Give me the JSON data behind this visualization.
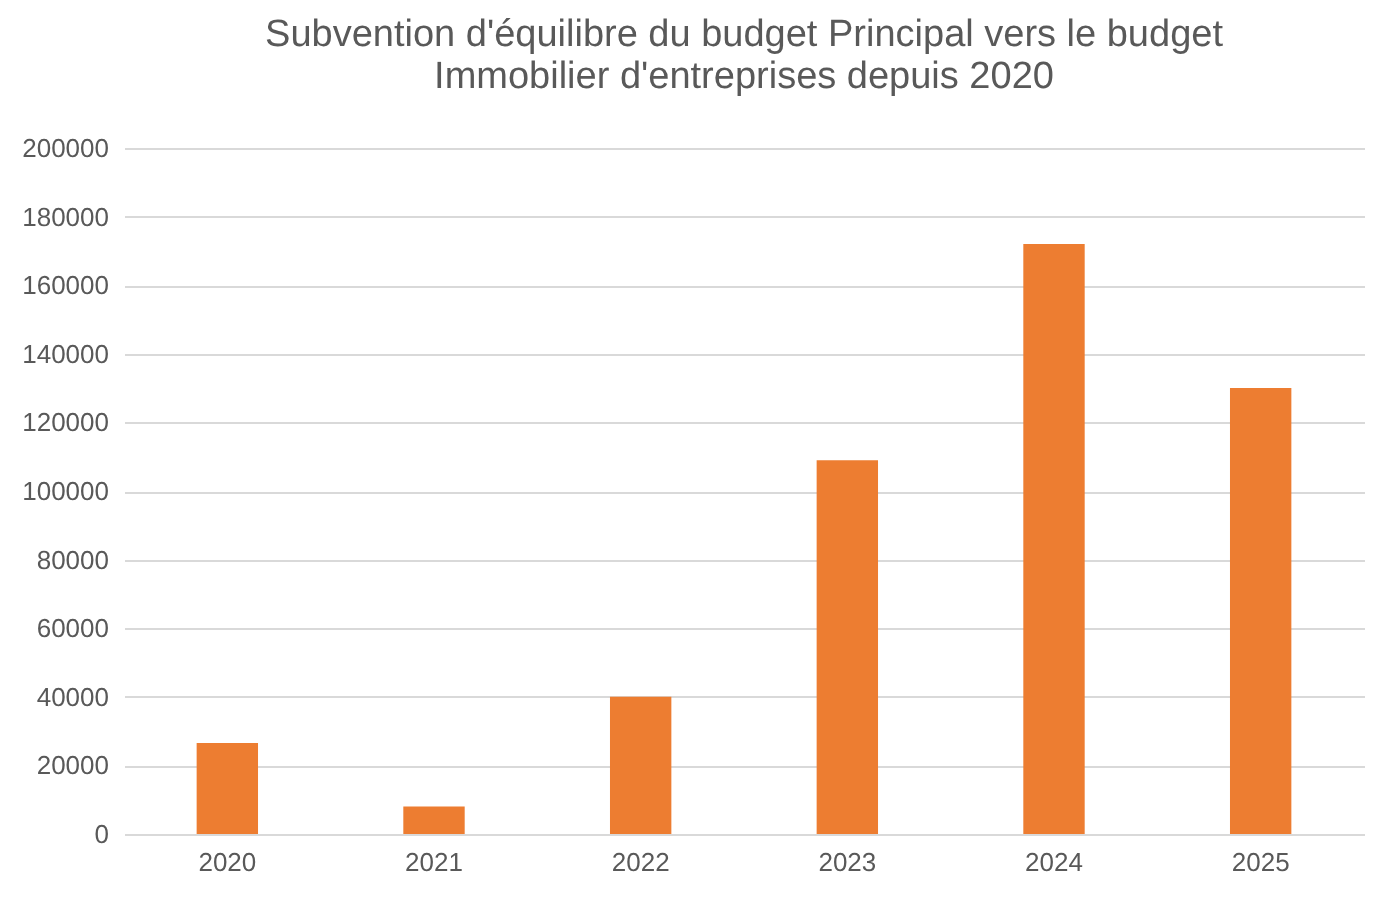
{
  "chart_data": {
    "type": "bar",
    "title": "Subvention d'équilibre du budget Principal vers le budget Immobilier d'entreprises depuis 2020",
    "categories": [
      "2020",
      "2021",
      "2022",
      "2023",
      "2024",
      "2025"
    ],
    "values": [
      26500,
      8000,
      40000,
      109000,
      172000,
      130000
    ],
    "color": "#ed7d31",
    "ylim": [
      0,
      200000
    ],
    "yticks": [
      0,
      20000,
      40000,
      60000,
      80000,
      100000,
      120000,
      140000,
      160000,
      180000,
      200000
    ],
    "grid": "y"
  }
}
